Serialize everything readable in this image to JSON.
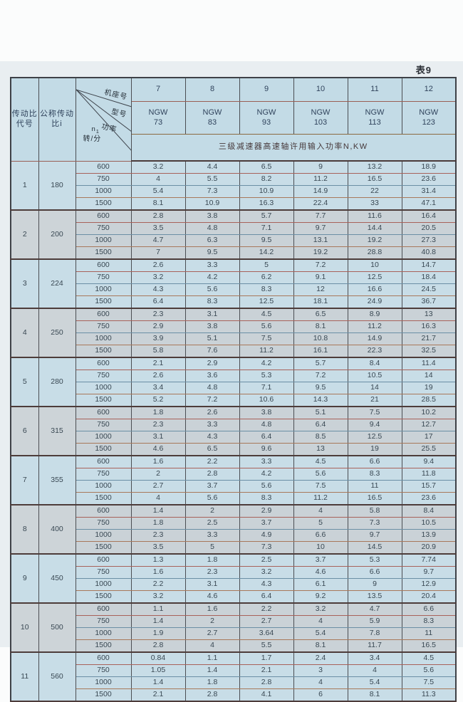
{
  "page": {
    "table_label": "表9"
  },
  "table": {
    "header": {
      "col_code": "传动比\n代号",
      "col_ratio": "公称传动\n比i",
      "diagonal": {
        "frame_label": "机座号",
        "model_label": "型号",
        "power_label": "功率",
        "n1_label": "n",
        "n1_sub": "1",
        "rpm_unit": "转/分"
      },
      "frame_numbers": [
        "7",
        "8",
        "9",
        "10",
        "11",
        "12"
      ],
      "models": [
        "NGW\n73",
        "NGW\n83",
        "NGW\n93",
        "NGW\n103",
        "NGW\n113",
        "NGW\n123"
      ],
      "merged_title": "三级减速器高速轴许用输入功率N,KW"
    },
    "rpm_values": [
      "600",
      "750",
      "1000",
      "1500"
    ],
    "groups": [
      {
        "code": "1",
        "ratio": "180",
        "rows": [
          {
            "rpm": "600",
            "values": [
              "3.2",
              "4.4",
              "6.5",
              "9",
              "13.2",
              "18.9"
            ]
          },
          {
            "rpm": "750",
            "values": [
              "4",
              "5.5",
              "8.2",
              "11.2",
              "16.5",
              "23.6"
            ]
          },
          {
            "rpm": "1000",
            "values": [
              "5.4",
              "7.3",
              "10.9",
              "14.9",
              "22",
              "31.4"
            ]
          },
          {
            "rpm": "1500",
            "values": [
              "8.1",
              "10.9",
              "16.3",
              "22.4",
              "33",
              "47.1"
            ]
          }
        ]
      },
      {
        "code": "2",
        "ratio": "200",
        "rows": [
          {
            "rpm": "600",
            "values": [
              "2.8",
              "3.8",
              "5.7",
              "7.7",
              "11.6",
              "16.4"
            ]
          },
          {
            "rpm": "750",
            "values": [
              "3.5",
              "4.8",
              "7.1",
              "9.7",
              "14.4",
              "20.5"
            ]
          },
          {
            "rpm": "1000",
            "values": [
              "4.7",
              "6.3",
              "9.5",
              "13.1",
              "19.2",
              "27.3"
            ]
          },
          {
            "rpm": "1500",
            "values": [
              "7",
              "9.5",
              "14.2",
              "19.2",
              "28.8",
              "40.8"
            ]
          }
        ]
      },
      {
        "code": "3",
        "ratio": "224",
        "rows": [
          {
            "rpm": "600",
            "values": [
              "2.6",
              "3.3",
              "5",
              "7.2",
              "10",
              "14.7"
            ]
          },
          {
            "rpm": "750",
            "values": [
              "3.2",
              "4.2",
              "6.2",
              "9.1",
              "12.5",
              "18.4"
            ]
          },
          {
            "rpm": "1000",
            "values": [
              "4.3",
              "5.6",
              "8.3",
              "12",
              "16.6",
              "24.5"
            ]
          },
          {
            "rpm": "1500",
            "values": [
              "6.4",
              "8.3",
              "12.5",
              "18.1",
              "24.9",
              "36.7"
            ]
          }
        ]
      },
      {
        "code": "4",
        "ratio": "250",
        "rows": [
          {
            "rpm": "600",
            "values": [
              "2.3",
              "3.1",
              "4.5",
              "6.5",
              "8.9",
              "13"
            ]
          },
          {
            "rpm": "750",
            "values": [
              "2.9",
              "3.8",
              "5.6",
              "8.1",
              "11.2",
              "16.3"
            ]
          },
          {
            "rpm": "1000",
            "values": [
              "3.9",
              "5.1",
              "7.5",
              "10.8",
              "14.9",
              "21.7"
            ]
          },
          {
            "rpm": "1500",
            "values": [
              "5.8",
              "7.6",
              "11.2",
              "16.1",
              "22.3",
              "32.5"
            ]
          }
        ]
      },
      {
        "code": "5",
        "ratio": "280",
        "rows": [
          {
            "rpm": "600",
            "values": [
              "2.1",
              "2.9",
              "4.2",
              "5.7",
              "8.4",
              "11.4"
            ]
          },
          {
            "rpm": "750",
            "values": [
              "2.6",
              "3.6",
              "5.3",
              "7.2",
              "10.5",
              "14"
            ]
          },
          {
            "rpm": "1000",
            "values": [
              "3.4",
              "4.8",
              "7.1",
              "9.5",
              "14",
              "19"
            ]
          },
          {
            "rpm": "1500",
            "values": [
              "5.2",
              "7.2",
              "10.6",
              "14.3",
              "21",
              "28.5"
            ]
          }
        ]
      },
      {
        "code": "6",
        "ratio": "315",
        "rows": [
          {
            "rpm": "600",
            "values": [
              "1.8",
              "2.6",
              "3.8",
              "5.1",
              "7.5",
              "10.2"
            ]
          },
          {
            "rpm": "750",
            "values": [
              "2.3",
              "3.3",
              "4.8",
              "6.4",
              "9.4",
              "12.7"
            ]
          },
          {
            "rpm": "1000",
            "values": [
              "3.1",
              "4.3",
              "6.4",
              "8.5",
              "12.5",
              "17"
            ]
          },
          {
            "rpm": "1500",
            "values": [
              "4.6",
              "6.5",
              "9.6",
              "13",
              "19",
              "25.5"
            ]
          }
        ]
      },
      {
        "code": "7",
        "ratio": "355",
        "rows": [
          {
            "rpm": "600",
            "values": [
              "1.6",
              "2.2",
              "3.3",
              "4.5",
              "6.6",
              "9.4"
            ]
          },
          {
            "rpm": "750",
            "values": [
              "2",
              "2.8",
              "4.2",
              "5.6",
              "8.3",
              "11.8"
            ]
          },
          {
            "rpm": "1000",
            "values": [
              "2.7",
              "3.7",
              "5.6",
              "7.5",
              "11",
              "15.7"
            ]
          },
          {
            "rpm": "1500",
            "values": [
              "4",
              "5.6",
              "8.3",
              "11.2",
              "16.5",
              "23.6"
            ]
          }
        ]
      },
      {
        "code": "8",
        "ratio": "400",
        "rows": [
          {
            "rpm": "600",
            "values": [
              "1.4",
              "2",
              "2.9",
              "4",
              "5.8",
              "8.4"
            ]
          },
          {
            "rpm": "750",
            "values": [
              "1.8",
              "2.5",
              "3.7",
              "5",
              "7.3",
              "10.5"
            ]
          },
          {
            "rpm": "1000",
            "values": [
              "2.3",
              "3.3",
              "4.9",
              "6.6",
              "9.7",
              "13.9"
            ]
          },
          {
            "rpm": "1500",
            "values": [
              "3.5",
              "5",
              "7.3",
              "10",
              "14.5",
              "20.9"
            ]
          }
        ]
      },
      {
        "code": "9",
        "ratio": "450",
        "rows": [
          {
            "rpm": "600",
            "values": [
              "1.3",
              "1.8",
              "2.5",
              "3.7",
              "5.3",
              "7.74"
            ]
          },
          {
            "rpm": "750",
            "values": [
              "1.6",
              "2.3",
              "3.2",
              "4.6",
              "6.6",
              "9.7"
            ]
          },
          {
            "rpm": "1000",
            "values": [
              "2.2",
              "3.1",
              "4.3",
              "6.1",
              "9",
              "12.9"
            ]
          },
          {
            "rpm": "1500",
            "values": [
              "3.2",
              "4.6",
              "6.4",
              "9.2",
              "13.5",
              "20.4"
            ]
          }
        ]
      },
      {
        "code": "10",
        "ratio": "500",
        "rows": [
          {
            "rpm": "600",
            "values": [
              "1.1",
              "1.6",
              "2.2",
              "3.2",
              "4.7",
              "6.6"
            ]
          },
          {
            "rpm": "750",
            "values": [
              "1.4",
              "2",
              "2.7",
              "4",
              "5.9",
              "8.3"
            ]
          },
          {
            "rpm": "1000",
            "values": [
              "1.9",
              "2.7",
              "3.64",
              "5.4",
              "7.8",
              "11"
            ]
          },
          {
            "rpm": "1500",
            "values": [
              "2.8",
              "4",
              "5.5",
              "8.1",
              "11.7",
              "16.5"
            ]
          }
        ]
      },
      {
        "code": "11",
        "ratio": "560",
        "rows": [
          {
            "rpm": "600",
            "values": [
              "0.84",
              "1.1",
              "1.7",
              "2.4",
              "3.4",
              "4.5"
            ]
          },
          {
            "rpm": "750",
            "values": [
              "1.05",
              "1.4",
              "2.1",
              "3",
              "4",
              "5.6"
            ]
          },
          {
            "rpm": "1000",
            "values": [
              "1.4",
              "1.8",
              "2.8",
              "4",
              "5.4",
              "7.5"
            ]
          },
          {
            "rpm": "1500",
            "values": [
              "2.1",
              "2.8",
              "4.1",
              "6",
              "8.1",
              "11.3"
            ]
          }
        ]
      }
    ]
  }
}
